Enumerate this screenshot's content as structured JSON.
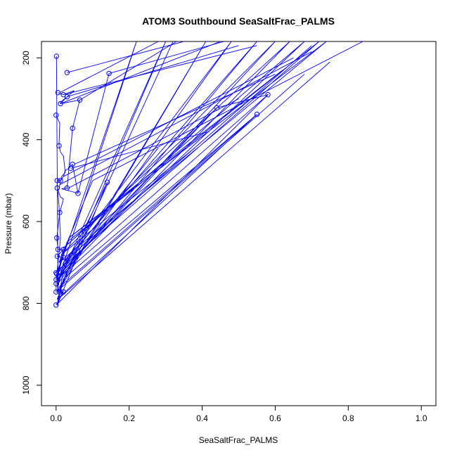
{
  "chart_data": {
    "type": "line",
    "title": "ATOM3 Southbound SeaSaltFrac_PALMS",
    "xlabel": "SeaSaltFrac_PALMS",
    "ylabel": "Pressure (mbar)",
    "xlim": [
      -0.04,
      1.04
    ],
    "ylim": [
      1050,
      160
    ],
    "y_inverted": true,
    "grid": false,
    "legend": "none",
    "x_ticks": [
      0.0,
      0.2,
      0.4,
      0.6,
      0.8,
      1.0
    ],
    "x_tick_labels": [
      "0.0",
      "0.2",
      "0.4",
      "0.6",
      "0.8",
      "1.0"
    ],
    "y_ticks": [
      200,
      400,
      600,
      800,
      1000
    ],
    "y_tick_labels": [
      "200",
      "400",
      "600",
      "800",
      "1000"
    ],
    "line_color": "#0000ff",
    "series": [
      {
        "points": [
          [
            0.001,
            196
          ],
          [
            0.005,
            745
          ],
          [
            0.22,
            160
          ],
          [
            0.002,
            730
          ],
          [
            0.005,
            775
          ],
          [
            0.3,
            160
          ],
          [
            0.01,
            740
          ],
          [
            0.14,
            504
          ],
          [
            0.003,
            805
          ],
          [
            0.02,
            720
          ],
          [
            0.44,
            322
          ],
          [
            0.58,
            290
          ],
          [
            0.005,
            800
          ],
          [
            0.02,
            740
          ],
          [
            0.55,
            338
          ],
          [
            0.003,
            790
          ],
          [
            0.03,
            725
          ],
          [
            0.32,
            160
          ],
          [
            0.007,
            770
          ],
          [
            0.41,
            160
          ],
          [
            0.003,
            770
          ],
          [
            0.02,
            700
          ],
          [
            0.48,
            160
          ],
          [
            0.003,
            755
          ],
          [
            0.03,
            690
          ],
          [
            0.55,
            160
          ],
          [
            0.003,
            745
          ],
          [
            0.015,
            680
          ],
          [
            0.6,
            160
          ],
          [
            0.003,
            735
          ],
          [
            0.02,
            665
          ],
          [
            0.64,
            160
          ],
          [
            0.003,
            740
          ],
          [
            0.025,
            660
          ],
          [
            0.68,
            160
          ],
          [
            0.005,
            725
          ],
          [
            0.03,
            650
          ],
          [
            0.72,
            160
          ],
          [
            0.005,
            720
          ],
          [
            0.035,
            640
          ],
          [
            0.74,
            160
          ],
          [
            0.008,
            700
          ],
          [
            0.1,
            500
          ],
          [
            0.84,
            160
          ]
        ]
      },
      {
        "points": [
          [
            0.005,
            285
          ],
          [
            0.02,
            290
          ],
          [
            0.05,
            280
          ],
          [
            0.01,
            310
          ],
          [
            0.03,
            295
          ],
          [
            0.012,
            312
          ],
          [
            0.065,
            303
          ],
          [
            0.045,
            372
          ],
          [
            0.03,
            518
          ],
          [
            0.015,
            520
          ],
          [
            0.06,
            531
          ],
          [
            0.045,
            460
          ],
          [
            0.035,
            470
          ],
          [
            0.025,
            475
          ],
          [
            0.02,
            490
          ],
          [
            0.012,
            500
          ],
          [
            0.003,
            500
          ],
          [
            0.003,
            518
          ],
          [
            0.012,
            540
          ],
          [
            0.02,
            545
          ],
          [
            0.01,
            578
          ],
          [
            0.002,
            640
          ],
          [
            0.005,
            668
          ],
          [
            0.02,
            668
          ],
          [
            0.003,
            685
          ],
          [
            0.02,
            688
          ],
          [
            0.0,
            725
          ],
          [
            0.002,
            728
          ],
          [
            0.0,
            742
          ],
          [
            0.0,
            752
          ],
          [
            0.0,
            772
          ],
          [
            0.01,
            772
          ],
          [
            0.02,
            772
          ],
          [
            0.0,
            804
          ]
        ]
      },
      {
        "points": [
          [
            0.0,
            340
          ],
          [
            0.005,
            350
          ],
          [
            0.01,
            360
          ],
          [
            0.008,
            415
          ],
          [
            0.012,
            430
          ],
          [
            0.02,
            440
          ],
          [
            0.025,
            480
          ],
          [
            0.015,
            490
          ],
          [
            0.01,
            510
          ],
          [
            0.005,
            530
          ],
          [
            0.008,
            560
          ],
          [
            0.01,
            600
          ],
          [
            0.012,
            640
          ],
          [
            0.008,
            680
          ],
          [
            0.005,
            700
          ],
          [
            0.003,
            720
          ]
        ]
      }
    ],
    "extra_segments": [
      [
        [
          0.03,
          236
        ],
        [
          0.35,
          160
        ]
      ],
      [
        [
          0.145,
          238
        ],
        [
          0.46,
          160
        ]
      ],
      [
        [
          0.065,
          303
        ],
        [
          0.33,
          160
        ]
      ],
      [
        [
          0.03,
          295
        ],
        [
          0.5,
          170
        ]
      ],
      [
        [
          0.06,
          531
        ],
        [
          0.145,
          238
        ]
      ],
      [
        [
          0.0,
          725
        ],
        [
          0.44,
          322
        ]
      ],
      [
        [
          0.005,
          740
        ],
        [
          0.58,
          290
        ]
      ],
      [
        [
          0.01,
          760
        ],
        [
          0.55,
          338
        ]
      ],
      [
        [
          0.02,
          700
        ],
        [
          0.7,
          170
        ]
      ],
      [
        [
          0.03,
          520
        ],
        [
          0.5,
          300
        ]
      ],
      [
        [
          0.05,
          460
        ],
        [
          0.6,
          240
        ]
      ],
      [
        [
          0.04,
          470
        ],
        [
          0.42,
          380
        ]
      ],
      [
        [
          0.02,
          490
        ],
        [
          0.65,
          200
        ]
      ],
      [
        [
          0.01,
          510
        ],
        [
          0.7,
          185
        ]
      ],
      [
        [
          0.035,
          640
        ],
        [
          0.62,
          230
        ]
      ],
      [
        [
          0.015,
          680
        ],
        [
          0.38,
          420
        ]
      ],
      [
        [
          0.012,
          312
        ],
        [
          0.45,
          160
        ]
      ],
      [
        [
          0.02,
          290
        ],
        [
          0.55,
          170
        ]
      ],
      [
        [
          0.01,
          285
        ],
        [
          0.28,
          160
        ]
      ],
      [
        [
          0.003,
          770
        ],
        [
          0.68,
          240
        ]
      ],
      [
        [
          0.005,
          790
        ],
        [
          0.75,
          210
        ]
      ],
      [
        [
          0.008,
          720
        ],
        [
          0.28,
          420
        ]
      ]
    ],
    "markers": [
      [
        0.001,
        196
      ],
      [
        0.03,
        236
      ],
      [
        0.145,
        238
      ],
      [
        0.005,
        285
      ],
      [
        0.02,
        290
      ],
      [
        0.03,
        295
      ],
      [
        0.58,
        290
      ],
      [
        0.012,
        312
      ],
      [
        0.065,
        303
      ],
      [
        0.0,
        340
      ],
      [
        0.44,
        322
      ],
      [
        0.55,
        338
      ],
      [
        0.045,
        372
      ],
      [
        0.008,
        415
      ],
      [
        0.04,
        470
      ],
      [
        0.045,
        460
      ],
      [
        0.012,
        500
      ],
      [
        0.003,
        500
      ],
      [
        0.003,
        518
      ],
      [
        0.03,
        518
      ],
      [
        0.06,
        531
      ],
      [
        0.14,
        504
      ],
      [
        0.01,
        578
      ],
      [
        0.002,
        640
      ],
      [
        0.005,
        668
      ],
      [
        0.02,
        668
      ],
      [
        0.003,
        685
      ],
      [
        0.02,
        688
      ],
      [
        0.0,
        725
      ],
      [
        0.002,
        728
      ],
      [
        0.0,
        742
      ],
      [
        0.0,
        752
      ],
      [
        0.0,
        772
      ],
      [
        0.01,
        772
      ],
      [
        0.02,
        772
      ],
      [
        0.0,
        804
      ]
    ]
  }
}
